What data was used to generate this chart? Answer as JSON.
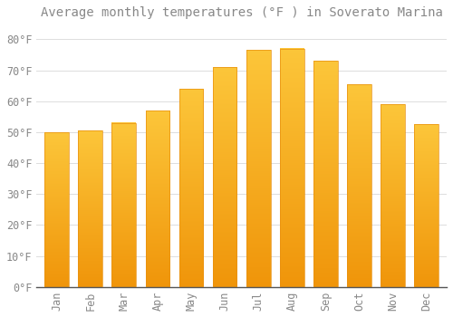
{
  "title": "Average monthly temperatures (°F ) in Soverato Marina",
  "months": [
    "Jan",
    "Feb",
    "Mar",
    "Apr",
    "May",
    "Jun",
    "Jul",
    "Aug",
    "Sep",
    "Oct",
    "Nov",
    "Dec"
  ],
  "values": [
    50.0,
    50.5,
    53.0,
    57.0,
    64.0,
    71.0,
    76.5,
    77.0,
    73.0,
    65.5,
    59.0,
    52.5
  ],
  "bar_color_top": "#FCC63A",
  "bar_color_bottom": "#F0950A",
  "background_color": "#FFFFFF",
  "grid_color": "#DDDDDD",
  "text_color": "#888888",
  "ylim": [
    0,
    85
  ],
  "yticks": [
    0,
    10,
    20,
    30,
    40,
    50,
    60,
    70,
    80
  ],
  "title_fontsize": 10,
  "tick_fontsize": 8.5
}
